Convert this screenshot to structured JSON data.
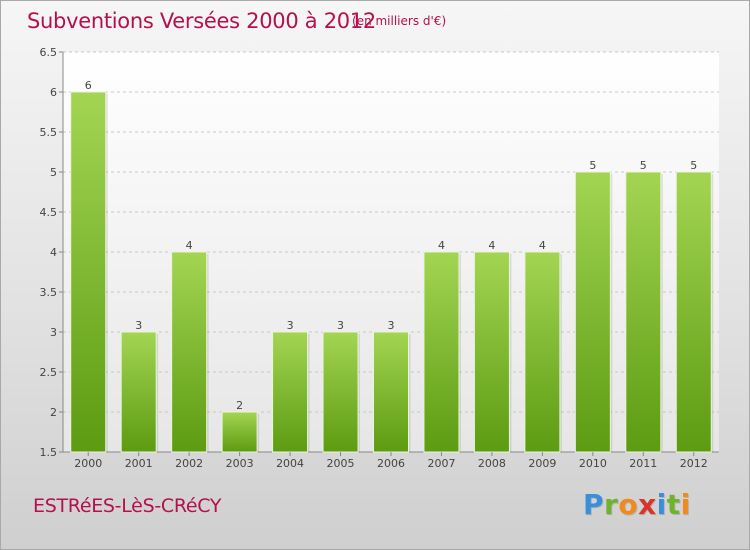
{
  "header": {
    "title": "Subventions Versées 2000 à 2012",
    "subtitle": "(en milliers d'€)"
  },
  "footer": {
    "commune": "ESTRéES-LèS-CRéCY",
    "brand_letters": [
      {
        "ch": "P",
        "color": "#3b8fd8"
      },
      {
        "ch": "r",
        "color": "#6fb32b"
      },
      {
        "ch": "o",
        "color": "#f08a1c"
      },
      {
        "ch": "x",
        "color": "#d8342b"
      },
      {
        "ch": "i",
        "color": "#3b8fd8"
      },
      {
        "ch": "t",
        "color": "#6fb32b"
      },
      {
        "ch": "i",
        "color": "#f08a1c"
      }
    ]
  },
  "colors": {
    "accent": "#b5104c",
    "bar_light": "#9fd24e",
    "bar_dark": "#5e9d14"
  },
  "chart_data": {
    "type": "bar",
    "title": "Subventions Versées 2000 à 2012",
    "subtitle": "(en milliers d'€)",
    "categories": [
      "2000",
      "2001",
      "2002",
      "2003",
      "2004",
      "2005",
      "2006",
      "2007",
      "2008",
      "2009",
      "2010",
      "2011",
      "2012"
    ],
    "values": [
      6,
      3,
      4,
      2,
      3,
      3,
      3,
      4,
      4,
      4,
      5,
      5,
      5
    ],
    "data_labels": [
      "6",
      "3",
      "4",
      "2",
      "3",
      "3",
      "3",
      "4",
      "4",
      "4",
      "5",
      "5",
      "5"
    ],
    "ylim": [
      1.5,
      6.5
    ],
    "yticks": [
      1.5,
      2,
      2.5,
      3,
      3.5,
      4,
      4.5,
      5,
      5.5,
      6,
      6.5
    ],
    "ytick_labels": [
      "1.5",
      "2",
      "2.5",
      "3",
      "3.5",
      "4",
      "4.5",
      "5",
      "5.5",
      "6",
      "6.5"
    ],
    "xlabel": "",
    "ylabel": "",
    "grid": "horizontal dashed",
    "legend": false
  }
}
